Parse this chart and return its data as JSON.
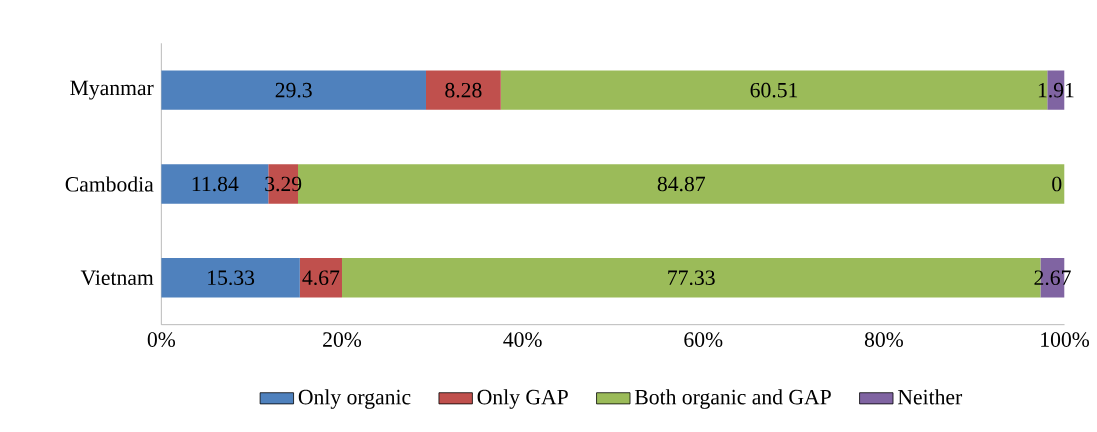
{
  "chart_data": {
    "type": "bar",
    "orientation": "horizontal",
    "stacked": true,
    "categories": [
      "Myanmar",
      "Cambodia",
      "Vietnam"
    ],
    "series": [
      {
        "name": "Only organic",
        "color": "#4f81bd",
        "values": [
          29.3,
          11.84,
          15.33
        ]
      },
      {
        "name": "Only GAP",
        "color": "#c0504d",
        "values": [
          8.28,
          3.29,
          4.67
        ]
      },
      {
        "name": "Both organic and GAP",
        "color": "#9bbb59",
        "values": [
          60.51,
          84.87,
          77.33
        ]
      },
      {
        "name": "Neither",
        "color": "#8064a2",
        "values": [
          1.91,
          0,
          2.67
        ]
      }
    ],
    "xlim": [
      0,
      100
    ],
    "xticks": [
      {
        "value": 0,
        "label": "0%"
      },
      {
        "value": 20,
        "label": "20%"
      },
      {
        "value": 40,
        "label": "40%"
      },
      {
        "value": 60,
        "label": "60%"
      },
      {
        "value": 80,
        "label": "80%"
      },
      {
        "value": 100,
        "label": "100%"
      }
    ],
    "data_labels": true,
    "legend": "bottom"
  }
}
